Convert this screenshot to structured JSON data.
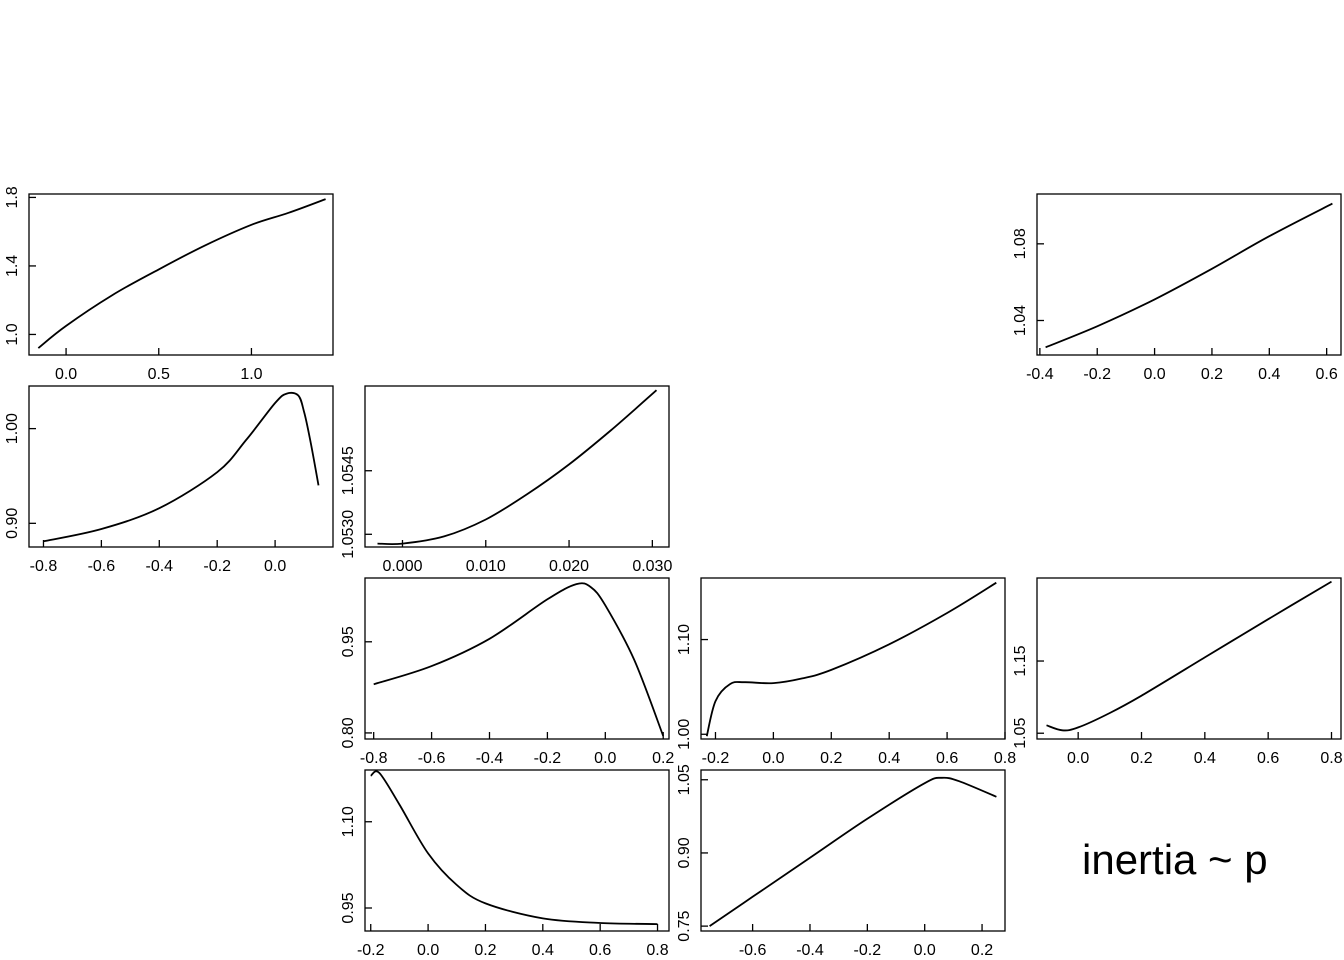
{
  "label": "inertia ~ p",
  "chart_data": [
    {
      "type": "line",
      "x": [
        -0.15,
        0,
        0.25,
        0.5,
        0.75,
        1.0,
        1.2,
        1.4
      ],
      "y": [
        0.92,
        1.05,
        1.23,
        1.38,
        1.52,
        1.64,
        1.71,
        1.79
      ],
      "xlim": [
        -0.2,
        1.44
      ],
      "ylim": [
        0.88,
        1.82
      ],
      "xticks": [
        0.0,
        0.5,
        1.0
      ],
      "xtick_labels": [
        "0.0",
        "0.5",
        "1.0"
      ],
      "yticks": [
        1.0,
        1.4,
        1.8
      ],
      "ytick_labels": [
        "1.0",
        "1.4",
        "1.8"
      ]
    },
    {
      "type": "line",
      "x": [
        -0.8,
        -0.6,
        -0.4,
        -0.2,
        -0.1,
        0.0,
        0.04,
        0.08,
        0.1,
        0.12,
        0.15
      ],
      "y": [
        0.881,
        0.894,
        0.916,
        0.954,
        0.988,
        1.027,
        1.037,
        1.035,
        1.018,
        0.99,
        0.94
      ],
      "xlim": [
        -0.85,
        0.2
      ],
      "ylim": [
        0.875,
        1.045
      ],
      "xticks": [
        -0.8,
        -0.6,
        -0.4,
        -0.2,
        0.0
      ],
      "xtick_labels": [
        "-0.8",
        "-0.6",
        "-0.4",
        "-0.2",
        "0.0"
      ],
      "yticks": [
        0.9,
        1.0
      ],
      "ytick_labels": [
        "0.90",
        "1.00"
      ]
    },
    {
      "type": "line",
      "x": [
        -0.003,
        0.0,
        0.005,
        0.01,
        0.015,
        0.02,
        0.025,
        0.0305
      ],
      "y": [
        1.05278,
        1.05278,
        1.05295,
        1.05335,
        1.05395,
        1.05465,
        1.05545,
        1.0564
      ],
      "xlim": [
        -0.0045,
        0.032
      ],
      "ylim": [
        1.0527,
        1.0565
      ],
      "xticks": [
        0.0,
        0.01,
        0.02,
        0.03
      ],
      "xtick_labels": [
        "0.000",
        "0.010",
        "0.020",
        "0.030"
      ],
      "yticks": [
        1.053,
        1.0545
      ],
      "ytick_labels": [
        "1.0530",
        "1.0545"
      ]
    },
    {
      "type": "line",
      "x": [
        -0.8,
        -0.6,
        -0.4,
        -0.2,
        -0.1,
        -0.05,
        0.0,
        0.1,
        0.2
      ],
      "y": [
        0.88,
        0.91,
        0.955,
        1.02,
        1.045,
        1.04,
        1.01,
        0.92,
        0.795
      ],
      "xlim": [
        -0.83,
        0.22
      ],
      "ylim": [
        0.79,
        1.055
      ],
      "xticks": [
        -0.8,
        -0.6,
        -0.4,
        -0.2,
        0.0,
        0.2
      ],
      "xtick_labels": [
        "-0.8",
        "-0.6",
        "-0.4",
        "-0.2",
        "0.0",
        "0.2"
      ],
      "yticks": [
        0.8,
        0.95
      ],
      "ytick_labels": [
        "0.80",
        "0.95"
      ]
    },
    {
      "type": "line",
      "x": [
        -0.23,
        -0.2,
        -0.15,
        -0.1,
        0.0,
        0.1,
        0.2,
        0.4,
        0.6,
        0.77
      ],
      "y": [
        0.998,
        1.035,
        1.053,
        1.055,
        1.054,
        1.059,
        1.068,
        1.095,
        1.128,
        1.16
      ],
      "xlim": [
        -0.25,
        0.8
      ],
      "ylim": [
        0.995,
        1.165
      ],
      "xticks": [
        -0.2,
        0.0,
        0.2,
        0.4,
        0.6,
        0.8
      ],
      "xtick_labels": [
        "-0.2",
        "0.0",
        "0.2",
        "0.4",
        "0.6",
        "0.8"
      ],
      "yticks": [
        1.0,
        1.1
      ],
      "ytick_labels": [
        "1.00",
        "1.10"
      ]
    },
    {
      "type": "line",
      "x": [
        -0.1,
        -0.05,
        0.0,
        0.1,
        0.2,
        0.4,
        0.6,
        0.8
      ],
      "y": [
        1.061,
        1.054,
        1.058,
        1.078,
        1.102,
        1.155,
        1.208,
        1.26
      ],
      "xlim": [
        -0.13,
        0.83
      ],
      "ylim": [
        1.042,
        1.265
      ],
      "xticks": [
        0.0,
        0.2,
        0.4,
        0.6,
        0.8
      ],
      "xtick_labels": [
        "0.0",
        "0.2",
        "0.4",
        "0.6",
        "0.8"
      ],
      "yticks": [
        1.05,
        1.15
      ],
      "ytick_labels": [
        "1.05",
        "1.15"
      ]
    },
    {
      "type": "line",
      "x": [
        -0.2,
        -0.17,
        -0.1,
        0.0,
        0.1,
        0.2,
        0.4,
        0.6,
        0.8
      ],
      "y": [
        1.18,
        1.185,
        1.13,
        1.045,
        0.99,
        0.958,
        0.932,
        0.924,
        0.922
      ],
      "xlim": [
        -0.22,
        0.84
      ],
      "ylim": [
        0.91,
        1.19
      ],
      "xticks": [
        -0.2,
        0.0,
        0.2,
        0.4,
        0.6,
        0.8
      ],
      "xtick_labels": [
        "-0.2",
        "0.0",
        "0.2",
        "0.4",
        "0.6",
        "0.8"
      ],
      "yticks": [
        0.95,
        1.1
      ],
      "ytick_labels": [
        "0.95",
        "1.10"
      ]
    },
    {
      "type": "line",
      "x": [
        -0.75,
        -0.6,
        -0.4,
        -0.2,
        0.0,
        0.06,
        0.12,
        0.25
      ],
      "y": [
        0.75,
        0.81,
        0.89,
        0.97,
        1.043,
        1.054,
        1.047,
        1.015
      ],
      "xlim": [
        -0.78,
        0.28
      ],
      "ylim": [
        0.74,
        1.07
      ],
      "xticks": [
        -0.6,
        -0.4,
        -0.2,
        0.0,
        0.2
      ],
      "xtick_labels": [
        "-0.6",
        "-0.4",
        "-0.2",
        "0.0",
        "0.2"
      ],
      "yticks": [
        0.75,
        0.9,
        1.05
      ],
      "ytick_labels": [
        "0.75",
        "0.90",
        "1.05"
      ]
    },
    {
      "type": "line",
      "x": [
        -0.38,
        -0.2,
        0.0,
        0.2,
        0.4,
        0.62
      ],
      "y": [
        1.026,
        1.037,
        1.051,
        1.067,
        1.084,
        1.101
      ],
      "xlim": [
        -0.41,
        0.65
      ],
      "ylim": [
        1.022,
        1.106
      ],
      "xticks": [
        -0.4,
        -0.2,
        0.0,
        0.2,
        0.4,
        0.6
      ],
      "xtick_labels": [
        "-0.4",
        "-0.2",
        "0.0",
        "0.2",
        "0.4",
        "0.6"
      ],
      "yticks": [
        1.04,
        1.08
      ],
      "ytick_labels": [
        "1.04",
        "1.08"
      ]
    }
  ]
}
